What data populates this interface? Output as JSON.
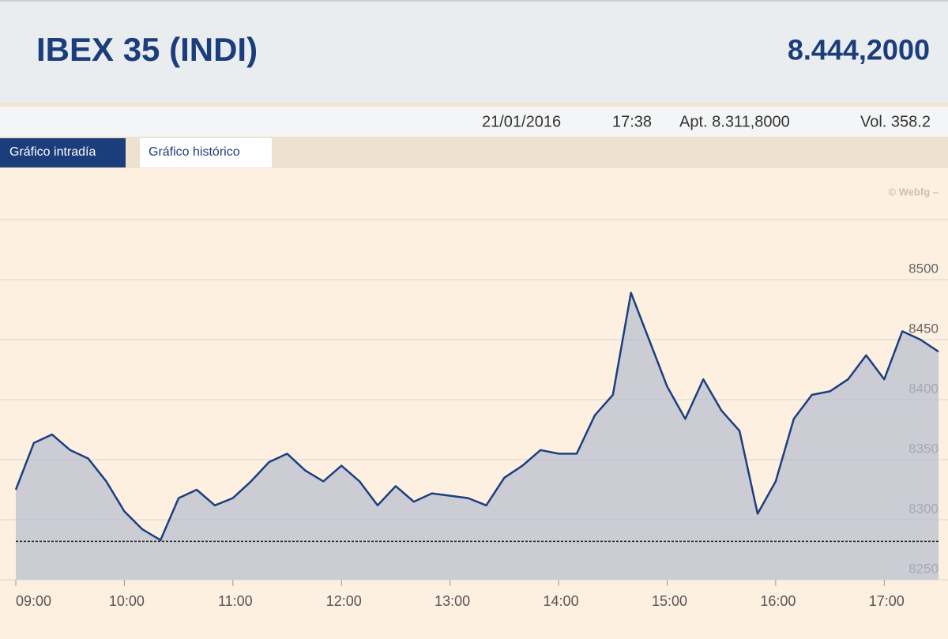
{
  "header": {
    "title": "IBEX 35 (INDI)",
    "price": "8.444,2000"
  },
  "info": {
    "date": "21/01/2016",
    "time": "17:38",
    "open": "Apt. 8.311,8000",
    "volume": "Vol. 358.2"
  },
  "tabs": [
    "Gráfico intradía",
    "Gráfico histórico"
  ],
  "watermark": "© Webfg –",
  "chart_data": {
    "type": "area",
    "color": "#1b3f80",
    "fill": "#b9c0cf",
    "grid": true,
    "x": [
      540,
      550,
      560,
      570,
      580,
      590,
      600,
      610,
      620,
      630,
      640,
      650,
      660,
      670,
      680,
      690,
      700,
      710,
      720,
      730,
      740,
      750,
      760,
      770,
      780,
      790,
      800,
      810,
      820,
      830,
      840,
      850,
      860,
      870,
      880,
      890,
      900,
      910,
      920,
      930,
      940,
      950,
      960,
      970,
      980,
      990,
      1000,
      1010,
      1020,
      1030,
      1040,
      1050
    ],
    "values": [
      8325,
      8364,
      8371,
      8358,
      8351,
      8332,
      8307,
      8292,
      8283,
      8318,
      8325,
      8312,
      8318,
      8332,
      8348,
      8355,
      8341,
      8332,
      8345,
      8332,
      8312,
      8328,
      8315,
      8322,
      8320,
      8318,
      8312,
      8335,
      8345,
      8358,
      8355,
      8355,
      8387,
      8404,
      8489,
      8450,
      8411,
      8384,
      8417,
      8391,
      8374,
      8305,
      8332,
      8384,
      8404,
      8407,
      8417,
      8437,
      8417,
      8457,
      8450,
      8440
    ],
    "xlim": [
      540,
      1050
    ],
    "xticks": [
      {
        "value": 540,
        "label": "09:00"
      },
      {
        "value": 600,
        "label": "10:00"
      },
      {
        "value": 660,
        "label": "11:00"
      },
      {
        "value": 720,
        "label": "12:00"
      },
      {
        "value": 780,
        "label": "13:00"
      },
      {
        "value": 840,
        "label": "14:00"
      },
      {
        "value": 900,
        "label": "15:00"
      },
      {
        "value": 960,
        "label": "16:00"
      },
      {
        "value": 1020,
        "label": "17:00"
      }
    ],
    "ylim": [
      8250,
      8550
    ],
    "yticks": [
      8250,
      8300,
      8350,
      8400,
      8450,
      8500
    ],
    "reference_line": 8282
  }
}
